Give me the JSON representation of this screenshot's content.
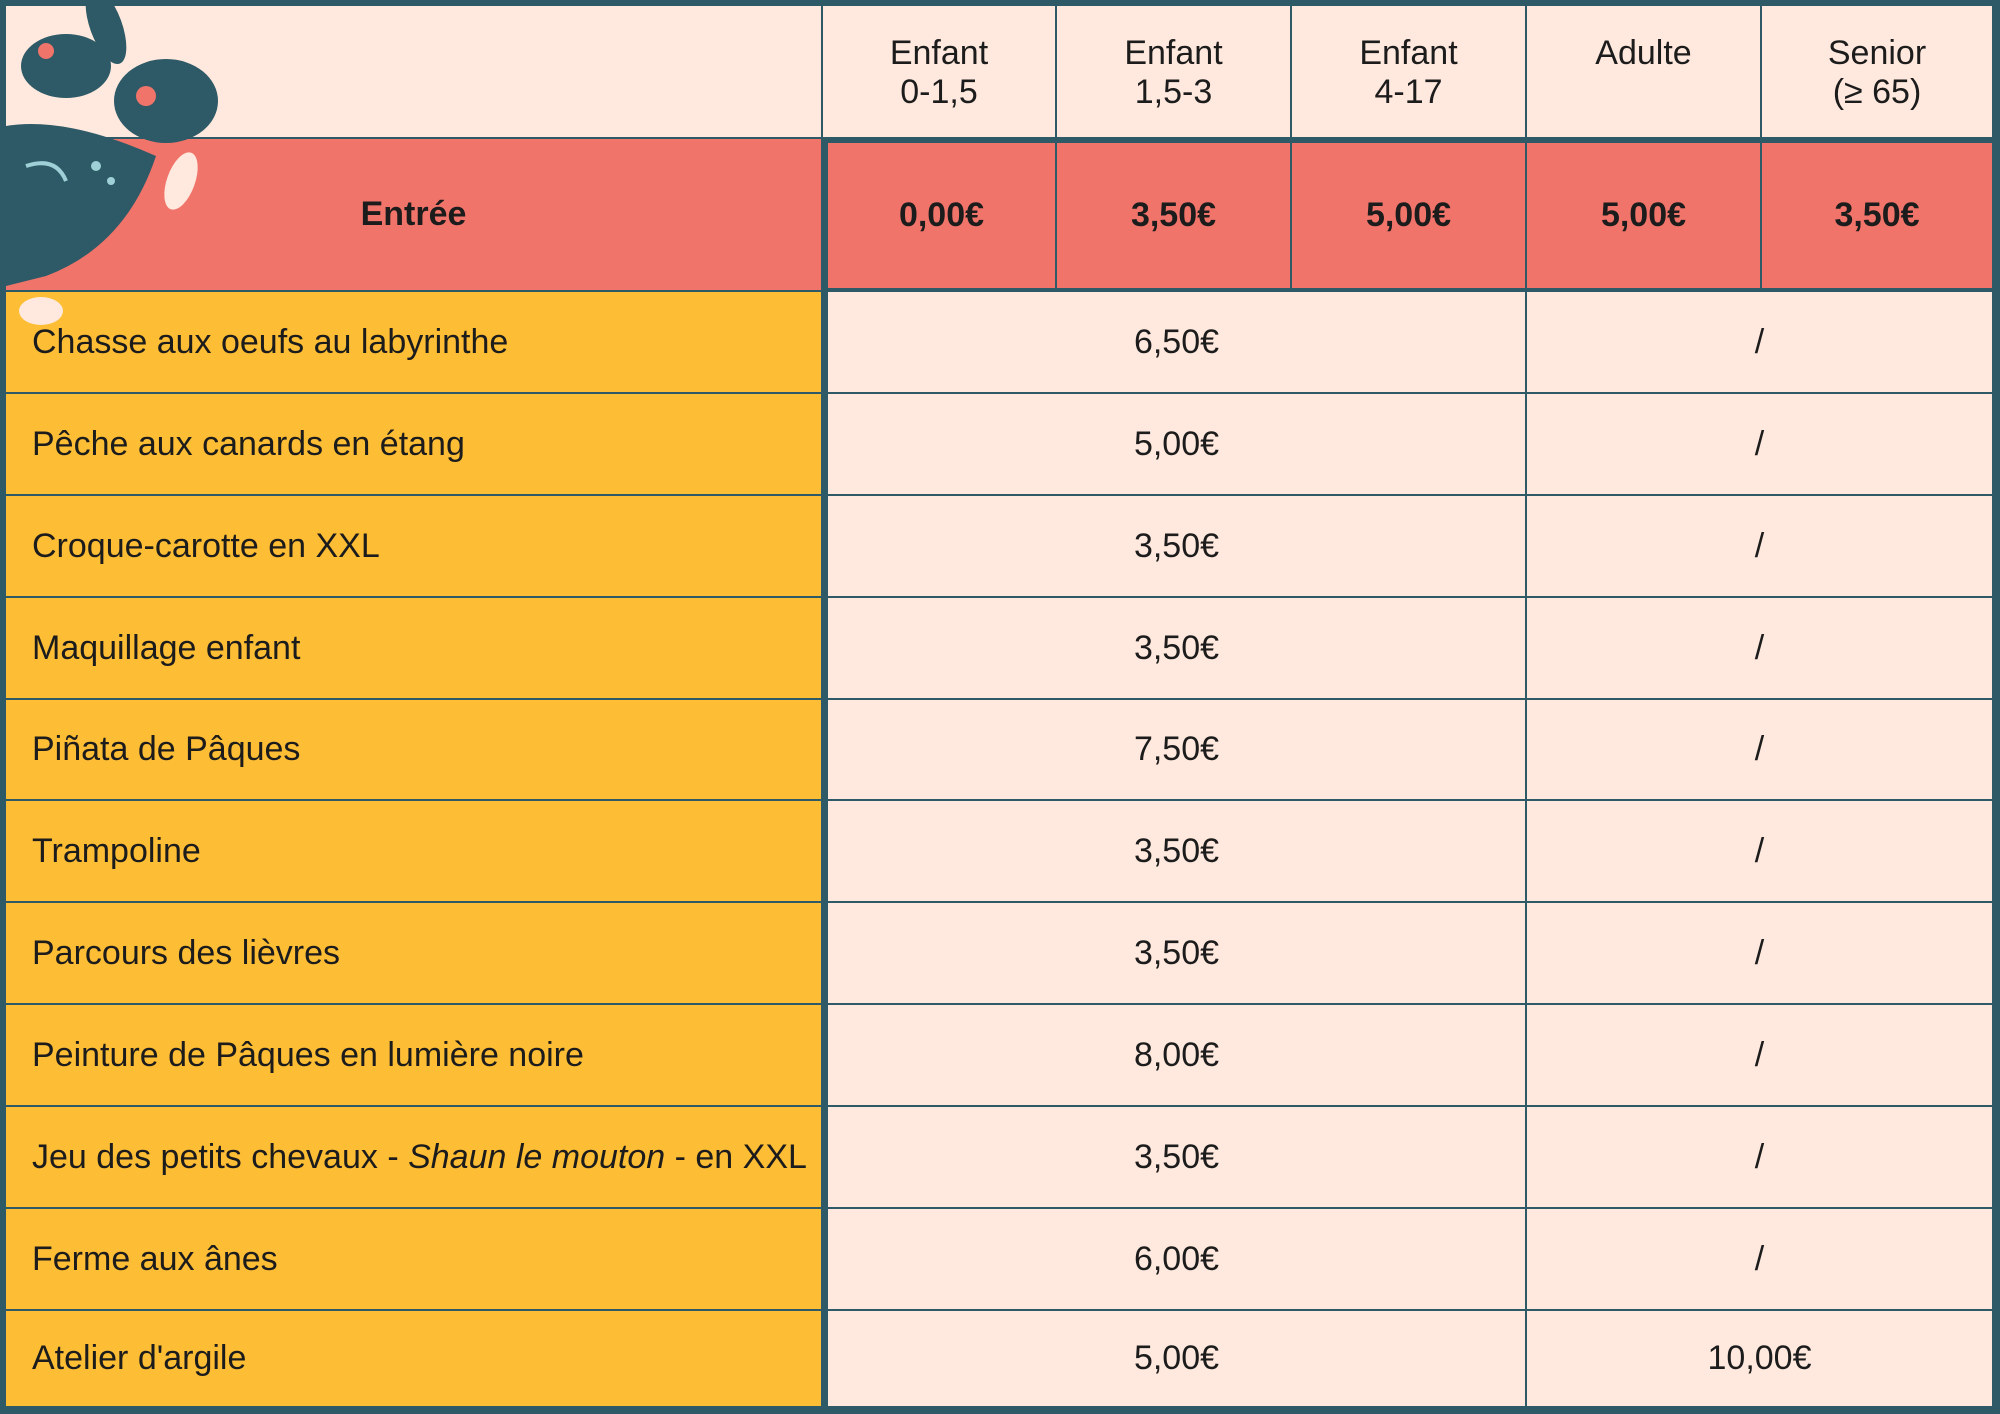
{
  "header": {
    "columns": [
      [
        "Enfant",
        "0-1,5"
      ],
      [
        "Enfant",
        "1,5-3"
      ],
      [
        "Enfant",
        "4-17"
      ],
      [
        "Adulte"
      ],
      [
        "Senior",
        "(≥ 65)"
      ]
    ]
  },
  "entry": {
    "label": "Entrée",
    "prices": [
      "0,00€",
      "3,50€",
      "5,00€",
      "5,00€",
      "3,50€"
    ]
  },
  "activities": [
    {
      "name": "Chasse aux oeufs au labyrinthe",
      "child": "6,50€",
      "adult": "/"
    },
    {
      "name": "Pêche aux canards en étang",
      "child": "5,00€",
      "adult": "/"
    },
    {
      "name": "Croque-carotte en XXL",
      "child": "3,50€",
      "adult": "/"
    },
    {
      "name": "Maquillage enfant",
      "child": "3,50€",
      "adult": "/"
    },
    {
      "name": "Piñata de Pâques",
      "child": "7,50€",
      "adult": "/"
    },
    {
      "name": "Trampoline",
      "child": "3,50€",
      "adult": "/"
    },
    {
      "name": "Parcours des lièvres",
      "child": "3,50€",
      "adult": "/"
    },
    {
      "name": "Peinture de Pâques en lumière noire",
      "child": "8,00€",
      "adult": "/"
    },
    {
      "name": [
        "Jeu des petits chevaux - ",
        "Shaun le mouton",
        " - en XXL"
      ],
      "child": "3,50€",
      "adult": "/"
    },
    {
      "name": "Ferme aux ânes",
      "child": "6,00€",
      "adult": "/"
    },
    {
      "name": "Atelier d'argile",
      "child": "5,00€",
      "adult": "10,00€"
    }
  ]
}
